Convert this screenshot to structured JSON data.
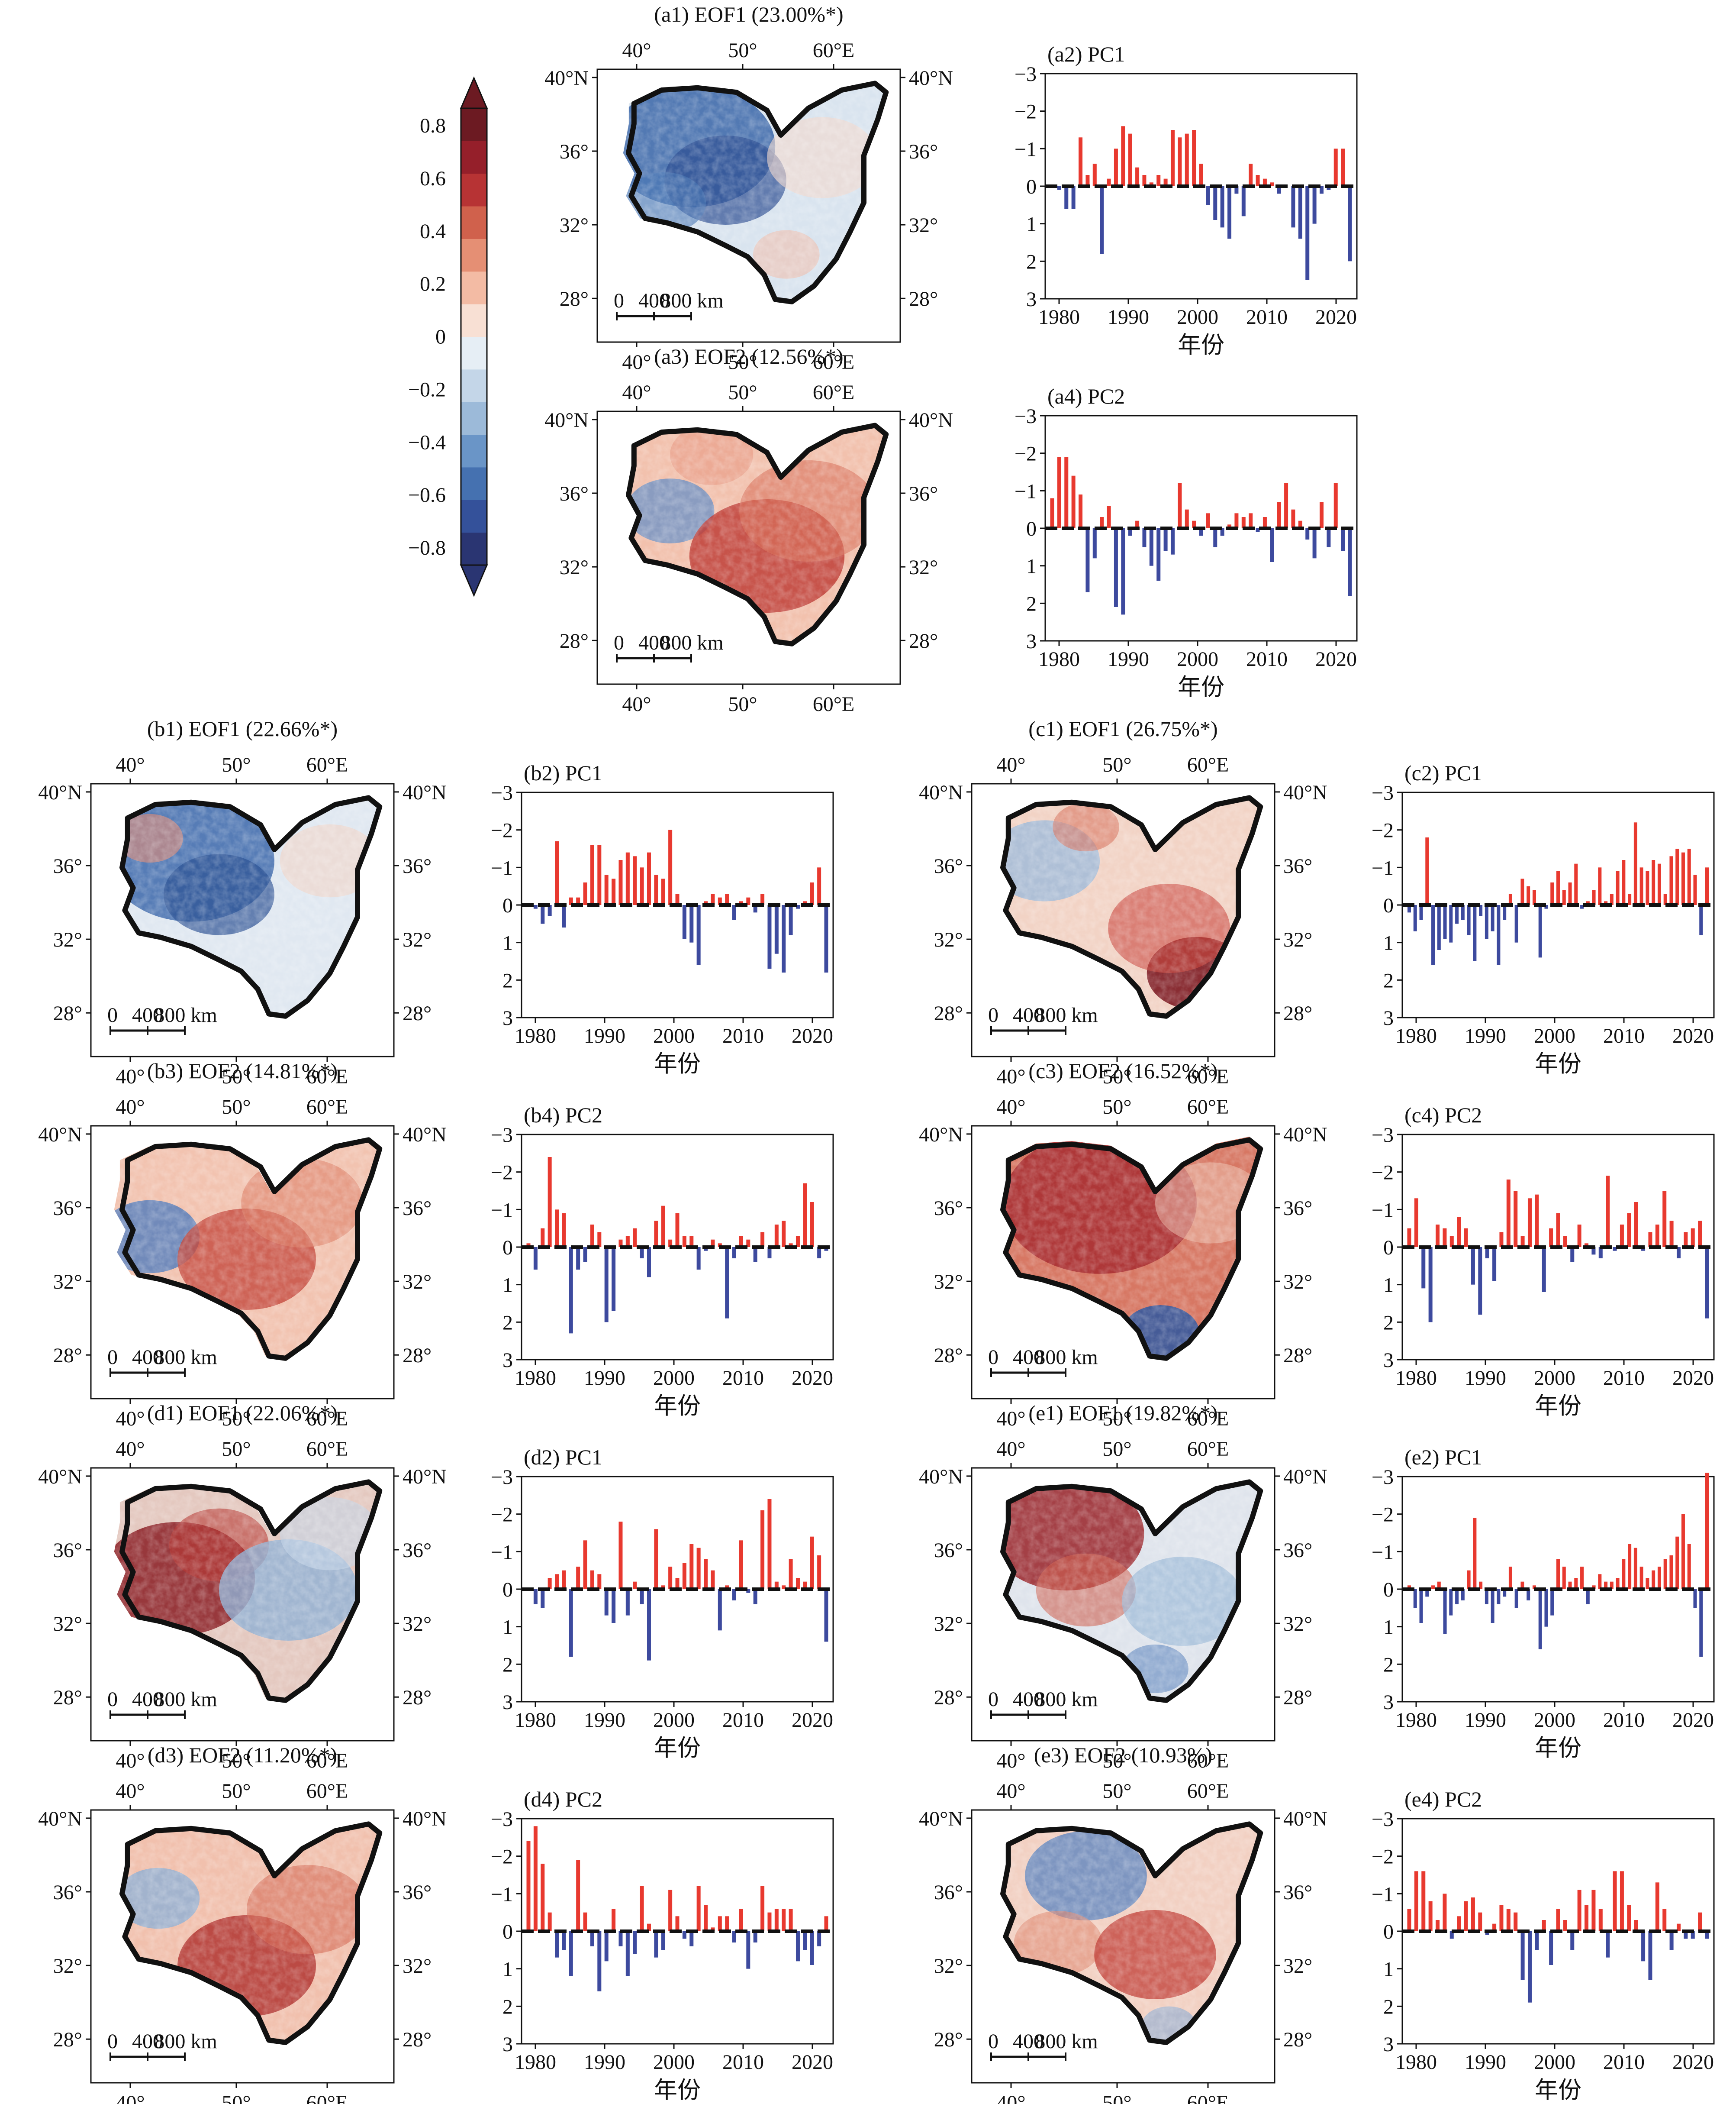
{
  "colorbar": {
    "ticks": [
      "0.8",
      "0.6",
      "0.4",
      "0.2",
      "0",
      "−0.2",
      "−0.4",
      "−0.6",
      "−0.8"
    ],
    "colors": [
      "#2a3572",
      "#34519a",
      "#4571b0",
      "#6a95c7",
      "#9cbad9",
      "#c4d6e8",
      "#e6eef5",
      "#f8e0d4",
      "#f3bba4",
      "#e58f74",
      "#d0614c",
      "#b73334",
      "#951f2a",
      "#6c1a22"
    ]
  },
  "map_axes": {
    "lon_ticks": [
      "40°",
      "50°",
      "60°E"
    ],
    "lat_left": [
      "40°N",
      "36°",
      "32°",
      "28°"
    ],
    "lat_right": [
      "40°N",
      "36°",
      "32°",
      "28°"
    ],
    "scale_labels": [
      "0",
      "400",
      "800 km"
    ]
  },
  "pc_axes": {
    "y_ticks": [
      "−3",
      "−2",
      "−1",
      "0",
      "1",
      "2",
      "3"
    ],
    "x_ticks": [
      "1980",
      "1990",
      "2000",
      "2010",
      "2020"
    ],
    "xlabel": "年份",
    "pos_color": "#e8392f",
    "neg_color": "#3d4a9e"
  },
  "rows": [
    {
      "map": {
        "title": "(a1) EOF1 (23.00%*)",
        "pattern": "a1"
      },
      "pc": {
        "title": "(a2) PC1",
        "values": [
          0,
          0.1,
          0.6,
          0.6,
          -1.3,
          -0.3,
          -0.6,
          1.8,
          -0.2,
          -1.0,
          -1.6,
          -1.4,
          -0.5,
          -0.3,
          -0.1,
          -0.3,
          -0.2,
          -1.5,
          -1.3,
          -1.4,
          -1.5,
          -0.6,
          0.5,
          0.9,
          1.1,
          1.4,
          0.2,
          0.8,
          -0.6,
          -0.3,
          -0.2,
          -0.1,
          0.2,
          0,
          1.1,
          1.4,
          2.5,
          1.0,
          0.2,
          0.1,
          -1.0,
          -1.0,
          2.0
        ]
      }
    },
    {
      "map": {
        "title": "(a3) EOF2 (12.56%*)",
        "pattern": "a3"
      },
      "pc": {
        "title": "(a4) PC2",
        "values": [
          -0.8,
          -1.9,
          -1.9,
          -1.4,
          -0.9,
          1.7,
          0.8,
          -0.3,
          -0.6,
          2.1,
          2.3,
          0.2,
          -0.2,
          0.5,
          1.0,
          1.4,
          0.6,
          0.7,
          -1.2,
          -0.5,
          -0.2,
          0.2,
          -0.4,
          0.5,
          0.2,
          -0.1,
          -0.4,
          -0.3,
          -0.4,
          0.1,
          -0.3,
          0.9,
          -0.7,
          -1.2,
          -0.5,
          -0.2,
          0.3,
          0.8,
          -0.7,
          0.5,
          -1.2,
          0.6,
          1.8
        ]
      }
    },
    {
      "map": {
        "title": "(b1) EOF1 (22.66%*)",
        "pattern": "b1"
      },
      "pc": {
        "title": "(b2) PC1",
        "values": [
          0,
          0.1,
          0.5,
          0.3,
          -1.7,
          0.6,
          -0.2,
          -0.2,
          -0.6,
          -1.6,
          -1.6,
          -0.8,
          -0.7,
          -1.2,
          -1.4,
          -1.3,
          -1.0,
          -1.4,
          -0.8,
          -0.7,
          -2.0,
          -0.3,
          0.9,
          1.0,
          1.6,
          -0.1,
          -0.3,
          -0.2,
          -0.3,
          0.4,
          -0.1,
          -0.2,
          0.2,
          -0.3,
          1.7,
          1.3,
          1.8,
          0.8,
          0.1,
          -0.1,
          -0.6,
          -1.0,
          1.8
        ]
      }
    },
    {
      "map": {
        "title": "(c1) EOF1 (26.75%*)",
        "pattern": "c1"
      },
      "pc": {
        "title": "(c2) PC1",
        "values": [
          0.2,
          0.7,
          0.4,
          -1.8,
          1.6,
          1.2,
          0.9,
          1.0,
          0.5,
          0.4,
          0.8,
          1.5,
          0.3,
          0.9,
          0.7,
          1.6,
          0.4,
          -0.3,
          1.0,
          -0.7,
          -0.5,
          -0.4,
          1.4,
          0.1,
          -0.6,
          -0.9,
          -0.4,
          -0.6,
          -1.1,
          0.1,
          -0.1,
          -0.4,
          -1.0,
          -0.1,
          -0.3,
          -0.9,
          -1.2,
          -0.3,
          -2.2,
          -1.0,
          -0.9,
          -1.2,
          -1.1,
          -0.3,
          -1.3,
          -1.5,
          -1.4,
          -1.5,
          -0.8,
          0.8,
          -1.0
        ]
      }
    },
    {
      "map": {
        "title": "(b3) EOF2 (14.81%*)",
        "pattern": "b3"
      },
      "pc": {
        "title": "(b4) PC2",
        "values": [
          -0.1,
          0.6,
          -0.5,
          -2.4,
          -1.0,
          -0.9,
          2.3,
          0.6,
          0.4,
          -0.6,
          -0.4,
          2.0,
          1.7,
          -0.2,
          -0.3,
          -0.5,
          0.3,
          0.8,
          -0.7,
          -1.1,
          -0.2,
          -0.9,
          -0.3,
          -0.3,
          0.6,
          0.1,
          -0.2,
          -0.1,
          1.9,
          0.3,
          -0.3,
          -0.2,
          0.4,
          -0.4,
          0.3,
          -0.6,
          -0.7,
          -0.1,
          -0.3,
          -1.7,
          -1.2,
          0.3,
          0.1
        ]
      }
    },
    {
      "map": {
        "title": "(c3) EOF2 (16.52%*)",
        "pattern": "c3"
      },
      "pc": {
        "title": "(c4) PC2",
        "values": [
          -0.5,
          -1.3,
          1.1,
          2.0,
          -0.6,
          -0.5,
          -0.3,
          -0.8,
          -0.5,
          1.0,
          1.8,
          0.3,
          0.9,
          -0.4,
          -1.8,
          -1.5,
          -0.3,
          -1.3,
          -1.4,
          1.2,
          -0.5,
          -0.9,
          -0.3,
          0.4,
          -0.6,
          -0.1,
          0.2,
          0.3,
          -1.9,
          0.1,
          -0.6,
          -0.9,
          -1.2,
          0.1,
          -0.4,
          -0.6,
          -1.5,
          -0.7,
          0.3,
          -0.4,
          -0.5,
          -0.7,
          1.9
        ]
      }
    },
    {
      "map": {
        "title": "(d1) EOF1 (22.06%*)",
        "pattern": "d1"
      },
      "pc": {
        "title": "(d2) PC1",
        "values": [
          0,
          0.4,
          0.5,
          -0.3,
          -0.4,
          -0.5,
          1.8,
          -0.6,
          -1.3,
          -0.5,
          -0.4,
          0.7,
          0.9,
          -1.8,
          0.7,
          -0.2,
          0.4,
          1.9,
          -1.6,
          -0.1,
          -0.6,
          -0.3,
          -0.7,
          -1.2,
          -1.1,
          -0.8,
          -0.5,
          1.1,
          -0.1,
          0.3,
          -1.3,
          0.1,
          0.4,
          -2.1,
          -2.4,
          -0.2,
          -0.1,
          -0.8,
          -0.3,
          -0.2,
          -1.4,
          -0.9,
          1.4
        ]
      }
    },
    {
      "map": {
        "title": "(e1) EOF1 (19.82%*)",
        "pattern": "e1"
      },
      "pc": {
        "title": "(e2) PC1",
        "values": [
          -0.1,
          0.5,
          0.9,
          0.2,
          -0.1,
          -0.2,
          1.2,
          0.7,
          0.4,
          0.3,
          -0.5,
          -1.9,
          -0.2,
          0.4,
          0.9,
          0.4,
          0.2,
          -0.6,
          0.5,
          -0.2,
          0.3,
          -0.1,
          1.6,
          1.0,
          0.7,
          -0.8,
          -0.6,
          -0.2,
          -0.3,
          -0.6,
          0.4,
          -0.1,
          -0.4,
          -0.2,
          -0.2,
          -0.3,
          -0.8,
          -1.2,
          -1.1,
          -0.6,
          -0.3,
          -0.5,
          -0.6,
          -0.8,
          -0.9,
          -1.4,
          -2.0,
          -1.2,
          0.5,
          1.8,
          -3.1
        ]
      }
    },
    {
      "map": {
        "title": "(d3) EOF2 (11.20%*)",
        "pattern": "d3"
      },
      "pc": {
        "title": "(d4) PC2",
        "values": [
          -2.4,
          -2.8,
          -1.8,
          -0.5,
          0.7,
          0.5,
          1.2,
          -1.9,
          -0.5,
          0.4,
          1.6,
          0.8,
          -0.6,
          0.4,
          1.2,
          0.6,
          -1.2,
          -0.2,
          0.7,
          0.5,
          -1.1,
          -0.4,
          0.2,
          0.4,
          -1.2,
          -0.7,
          -0.1,
          -0.4,
          -0.4,
          0.3,
          -0.6,
          1.0,
          0.3,
          -1.2,
          -0.5,
          -0.6,
          -0.6,
          -0.6,
          0.8,
          0.5,
          0.9,
          0.4,
          -0.4
        ]
      }
    },
    {
      "map": {
        "title": "(e3) EOF2 (10.93%)",
        "pattern": "e3"
      },
      "pc": {
        "title": "(e4) PC2",
        "values": [
          -0.6,
          -1.6,
          -1.6,
          -0.8,
          -0.3,
          -1.0,
          0.2,
          -0.4,
          -0.8,
          -0.9,
          -0.5,
          0.1,
          -0.2,
          -0.7,
          -0.6,
          -0.5,
          1.3,
          1.9,
          0.5,
          -0.3,
          0.9,
          -0.6,
          -0.3,
          0.5,
          -1.1,
          -0.7,
          -1.1,
          -0.6,
          0.7,
          -1.6,
          -1.6,
          -0.7,
          -0.3,
          0.8,
          1.3,
          -1.3,
          -0.6,
          0.5,
          -0.2,
          0.2,
          0.2,
          -0.5,
          0.2
        ]
      }
    }
  ]
}
